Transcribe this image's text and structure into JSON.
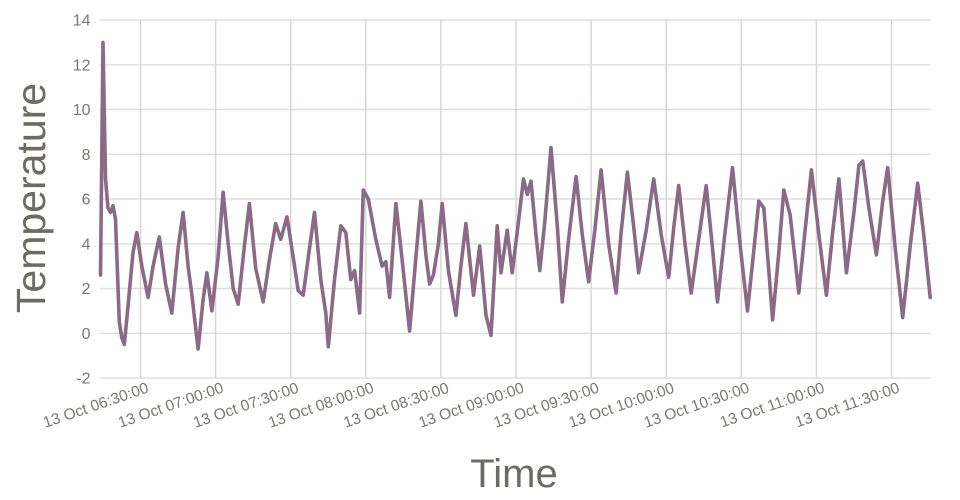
{
  "figure": {
    "background": "#ffffff",
    "axis_title_color": "#6e6b66",
    "tick_label_color": "#7b7873",
    "grid_color_horizontal": "#e1dedb",
    "grid_color_vertical": "#d7d4d1",
    "line_color": "#8a6a86"
  },
  "chart_data": {
    "type": "line",
    "title": "",
    "xlabel": "Time",
    "ylabel": "Temperature",
    "grid": true,
    "legend": false,
    "ylim": [
      -2,
      14
    ],
    "y_ticks": [
      -2,
      0,
      2,
      4,
      6,
      8,
      10,
      12,
      14
    ],
    "x_unit": "minutes after 06:00 on 13 Oct",
    "xlim_minutes": [
      13.6,
      345.6
    ],
    "x_ticks": [
      {
        "minute": 30,
        "label": "13 Oct 06:30:00"
      },
      {
        "minute": 60,
        "label": "13 Oct 07:00:00"
      },
      {
        "minute": 90,
        "label": "13 Oct 07:30:00"
      },
      {
        "minute": 120,
        "label": "13 Oct 08:00:00"
      },
      {
        "minute": 150,
        "label": "13 Oct 08:30:00"
      },
      {
        "minute": 180,
        "label": "13 Oct 09:00:00"
      },
      {
        "minute": 210,
        "label": "13 Oct 09:30:00"
      },
      {
        "minute": 240,
        "label": "13 Oct 10:00:00"
      },
      {
        "minute": 270,
        "label": "13 Oct 10:30:00"
      },
      {
        "minute": 300,
        "label": "13 Oct 11:00:00"
      },
      {
        "minute": 330,
        "label": "13 Oct 11:30:00"
      }
    ],
    "series": [
      {
        "name": "Temperature",
        "color": "#8a6a86",
        "points_minute_value": [
          [
            14,
            2.6
          ],
          [
            15,
            13
          ],
          [
            16,
            6.9
          ],
          [
            17,
            5.6
          ],
          [
            18,
            5.4
          ],
          [
            19,
            5.7
          ],
          [
            20,
            5.1
          ],
          [
            21.5,
            0.5
          ],
          [
            22.5,
            -0.2
          ],
          [
            23.5,
            -0.5
          ],
          [
            25,
            1.2
          ],
          [
            27,
            3.6
          ],
          [
            28.5,
            4.5
          ],
          [
            30.5,
            3
          ],
          [
            33,
            1.6
          ],
          [
            35,
            3
          ],
          [
            37.5,
            4.3
          ],
          [
            40,
            2.2
          ],
          [
            42.5,
            0.9
          ],
          [
            45,
            3.8
          ],
          [
            47,
            5.4
          ],
          [
            49,
            3
          ],
          [
            50.5,
            1.7
          ],
          [
            53,
            -0.7
          ],
          [
            55,
            1.5
          ],
          [
            56.5,
            2.7
          ],
          [
            58.5,
            1
          ],
          [
            61,
            3.4
          ],
          [
            63,
            6.3
          ],
          [
            65,
            4
          ],
          [
            67,
            2
          ],
          [
            69,
            1.3
          ],
          [
            71.5,
            3.9
          ],
          [
            73.5,
            5.8
          ],
          [
            76,
            2.9
          ],
          [
            79,
            1.4
          ],
          [
            81.5,
            3.3
          ],
          [
            84,
            4.9
          ],
          [
            86,
            4.2
          ],
          [
            88.5,
            5.2
          ],
          [
            91,
            3.4
          ],
          [
            93,
            1.9
          ],
          [
            95,
            1.7
          ],
          [
            97.5,
            3.8
          ],
          [
            99.5,
            5.4
          ],
          [
            102,
            2.4
          ],
          [
            104,
            0.9
          ],
          [
            105,
            -0.6
          ],
          [
            107.5,
            2.4
          ],
          [
            110,
            4.8
          ],
          [
            112,
            4.5
          ],
          [
            114,
            2.4
          ],
          [
            115.5,
            2.8
          ],
          [
            117.5,
            0.9
          ],
          [
            119,
            6.4
          ],
          [
            121,
            6
          ],
          [
            124,
            4.2
          ],
          [
            126.5,
            3
          ],
          [
            128,
            3.2
          ],
          [
            129.5,
            1.6
          ],
          [
            132,
            5.8
          ],
          [
            134.5,
            3.3
          ],
          [
            137.5,
            0.1
          ],
          [
            140,
            3.4
          ],
          [
            142,
            5.9
          ],
          [
            144,
            3.5
          ],
          [
            145.5,
            2.2
          ],
          [
            147,
            2.6
          ],
          [
            149,
            4
          ],
          [
            150.5,
            5.8
          ],
          [
            153,
            2.8
          ],
          [
            156,
            0.8
          ],
          [
            158,
            3
          ],
          [
            160,
            4.9
          ],
          [
            163,
            1.7
          ],
          [
            165.5,
            3.9
          ],
          [
            168,
            0.8
          ],
          [
            170,
            -0.1
          ],
          [
            172.5,
            4.8
          ],
          [
            174,
            2.7
          ],
          [
            176.5,
            4.6
          ],
          [
            178.5,
            2.7
          ],
          [
            181,
            5
          ],
          [
            183,
            6.9
          ],
          [
            184.5,
            6.2
          ],
          [
            186,
            6.8
          ],
          [
            188,
            4.4
          ],
          [
            189.5,
            2.8
          ],
          [
            191.5,
            5
          ],
          [
            194,
            8.3
          ],
          [
            196.5,
            4.8
          ],
          [
            198.5,
            1.4
          ],
          [
            201,
            4.2
          ],
          [
            204,
            7
          ],
          [
            206.5,
            4.4
          ],
          [
            209,
            2.3
          ],
          [
            211.5,
            4.6
          ],
          [
            214,
            7.3
          ],
          [
            217,
            4
          ],
          [
            220,
            1.8
          ],
          [
            222,
            4.5
          ],
          [
            224.5,
            7.2
          ],
          [
            227,
            4.8
          ],
          [
            229,
            2.7
          ],
          [
            232,
            4.6
          ],
          [
            235,
            6.9
          ],
          [
            238,
            4.4
          ],
          [
            241,
            2.5
          ],
          [
            243,
            4.7
          ],
          [
            245,
            6.6
          ],
          [
            247.5,
            4
          ],
          [
            250,
            1.8
          ],
          [
            253,
            4.2
          ],
          [
            256,
            6.6
          ],
          [
            258.5,
            3.8
          ],
          [
            260.5,
            1.4
          ],
          [
            263.5,
            4.5
          ],
          [
            266.5,
            7.4
          ],
          [
            269.5,
            4
          ],
          [
            272.5,
            1
          ],
          [
            275,
            3.7
          ],
          [
            277,
            5.9
          ],
          [
            279,
            5.6
          ],
          [
            281,
            2.8
          ],
          [
            282.5,
            0.6
          ],
          [
            285,
            3.6
          ],
          [
            287,
            6.4
          ],
          [
            289.5,
            5.3
          ],
          [
            293,
            1.8
          ],
          [
            295.5,
            4.6
          ],
          [
            298,
            7.3
          ],
          [
            301,
            4.4
          ],
          [
            304,
            1.7
          ],
          [
            306.5,
            4.5
          ],
          [
            309,
            6.9
          ],
          [
            312,
            2.7
          ],
          [
            315,
            5.4
          ],
          [
            317,
            7.5
          ],
          [
            318.5,
            7.7
          ],
          [
            321,
            5.6
          ],
          [
            324,
            3.5
          ],
          [
            326.5,
            5.9
          ],
          [
            328.5,
            7.4
          ],
          [
            331.5,
            3.8
          ],
          [
            334.5,
            0.7
          ],
          [
            337.5,
            3.9
          ],
          [
            340.5,
            6.7
          ],
          [
            343,
            4.3
          ],
          [
            345.5,
            1.6
          ]
        ]
      }
    ]
  }
}
